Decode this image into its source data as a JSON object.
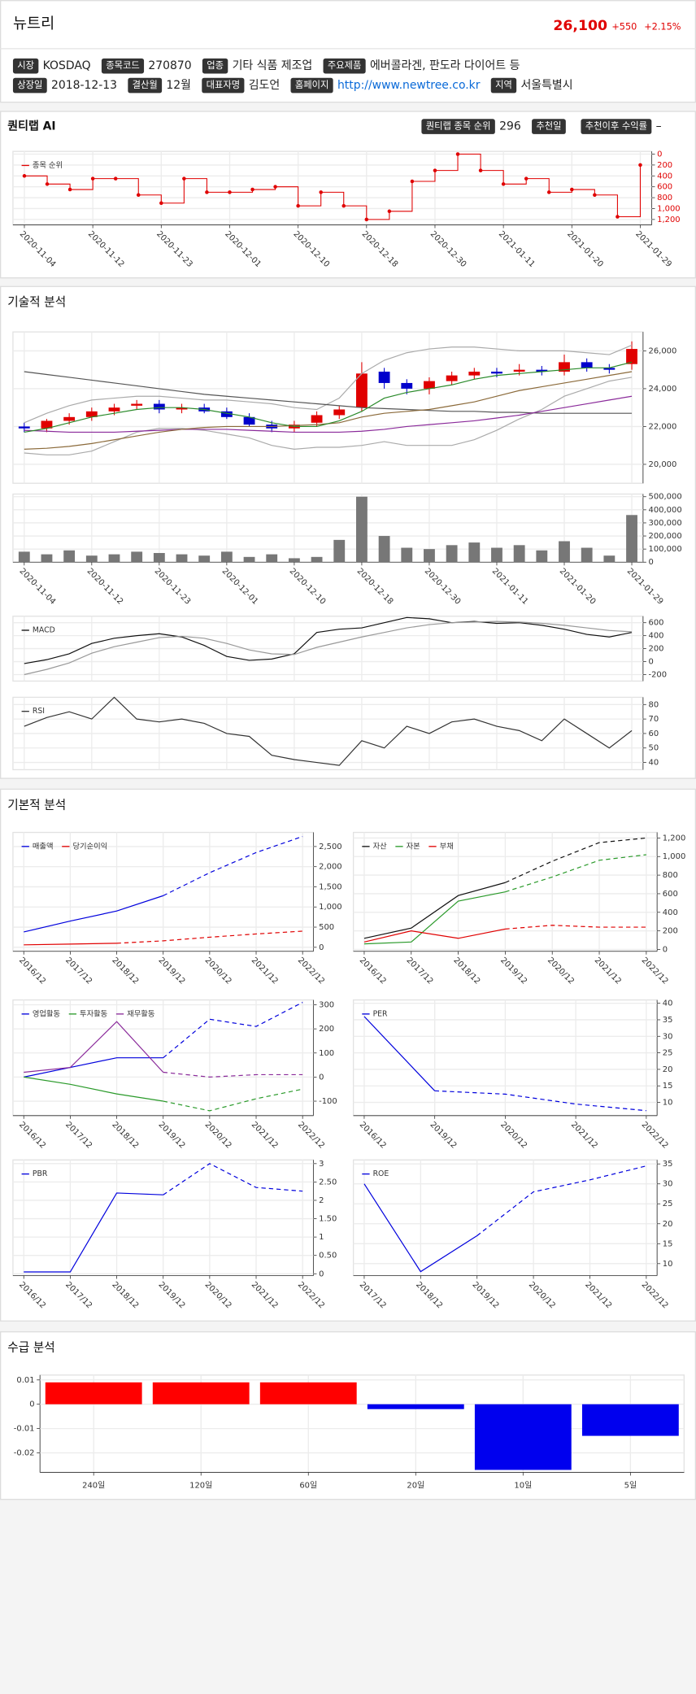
{
  "header": {
    "name": "뉴트리",
    "price": "26,100",
    "change": "+550",
    "change_pct": "+2.15%",
    "info": [
      [
        {
          "label": "시장",
          "value": "KOSDAQ"
        },
        {
          "label": "종목코드",
          "value": "270870"
        },
        {
          "label": "업종",
          "value": "기타 식품 제조업"
        },
        {
          "label": "주요제품",
          "value": "에버콜라겐, 판도라 다이어트 등"
        }
      ],
      [
        {
          "label": "상장일",
          "value": "2018-12-13"
        },
        {
          "label": "결산월",
          "value": "12월"
        },
        {
          "label": "대표자명",
          "value": "김도언"
        },
        {
          "label": "홈페이지",
          "value": "http://www.newtree.co.kr",
          "link": true
        },
        {
          "label": "지역",
          "value": "서울특별시"
        }
      ]
    ]
  },
  "sections": {
    "ai": "퀀티랩 AI",
    "tech": "기술적 분석",
    "fund": "기본적 분석",
    "supply": "수급 분석"
  },
  "ai_badges": [
    {
      "label": "퀀티랩 종목 순위",
      "value": 296
    },
    {
      "label": "추천일"
    },
    {
      "label": "추천이후 수익률",
      "value": "–"
    }
  ],
  "chart_data": [
    {
      "type": "line",
      "step": true,
      "markers": true,
      "y_reversed": true,
      "tick_color": "#e00000",
      "categories": [
        "2020-11-04",
        null,
        null,
        "2020-11-12",
        null,
        null,
        "2020-11-23",
        null,
        null,
        "2020-12-01",
        null,
        null,
        "2020-12-10",
        null,
        null,
        "2020-12-18",
        null,
        null,
        "2020-12-30",
        null,
        null,
        "2021-01-11",
        null,
        null,
        "2021-01-20",
        null,
        null,
        "2021-01-29"
      ],
      "series": [
        {
          "name": "종목 순위",
          "color": "#e00000",
          "values": [
            400,
            550,
            650,
            450,
            450,
            750,
            900,
            450,
            700,
            700,
            650,
            600,
            950,
            700,
            950,
            1200,
            1050,
            500,
            300,
            0,
            300,
            550,
            450,
            700,
            650,
            750,
            1150,
            200
          ]
        }
      ],
      "ylim": [
        -50,
        1300
      ],
      "yticks": [
        0,
        200,
        400,
        600,
        800,
        {
          "value": 1000,
          "label": "1,000"
        },
        {
          "value": 1200,
          "label": "1,200"
        }
      ]
    },
    {
      "type": "candlestick",
      "up_color": "#e00000",
      "down_color": "#0000cc",
      "open": [
        22000,
        21900,
        22300,
        22500,
        22800,
        23100,
        23200,
        22900,
        23000,
        22800,
        22500,
        22100,
        21900,
        22200,
        22600,
        23000,
        24900,
        24300,
        24000,
        24400,
        24700,
        24900,
        24900,
        25000,
        24900,
        25400,
        25100,
        25300
      ],
      "high": [
        22200,
        22400,
        22700,
        23000,
        23200,
        23400,
        23400,
        23200,
        23200,
        23000,
        22700,
        22300,
        22300,
        22800,
        23100,
        25400,
        25100,
        24500,
        24600,
        24900,
        25100,
        25100,
        25300,
        25200,
        25800,
        25600,
        25300,
        26500
      ],
      "low": [
        21700,
        21700,
        22100,
        22300,
        22600,
        22900,
        22700,
        22700,
        22700,
        22400,
        22000,
        21700,
        21700,
        22000,
        22400,
        22800,
        24000,
        23700,
        23700,
        24200,
        24500,
        24600,
        24700,
        24700,
        24700,
        24900,
        24800,
        25000
      ],
      "close": [
        21900,
        22300,
        22500,
        22800,
        23000,
        23200,
        22900,
        23000,
        22800,
        22500,
        22100,
        21900,
        22100,
        22600,
        22900,
        24800,
        24300,
        24000,
        24400,
        24700,
        24900,
        24800,
        25000,
        24900,
        25400,
        25100,
        25000,
        26100
      ],
      "series": [
        {
          "color": "#aaaaaa",
          "values": [
            22200,
            22700,
            23100,
            23400,
            23500,
            23600,
            23600,
            23500,
            23400,
            23400,
            23300,
            23200,
            23000,
            22900,
            23500,
            24800,
            25500,
            25900,
            26100,
            26200,
            26200,
            26100,
            26000,
            26000,
            26000,
            25900,
            25800,
            26300
          ]
        },
        {
          "color": "#aaaaaa",
          "values": [
            20600,
            20500,
            20500,
            20700,
            21200,
            21700,
            21900,
            21900,
            21800,
            21600,
            21400,
            21000,
            20800,
            20900,
            20900,
            21000,
            21200,
            21000,
            21000,
            21000,
            21300,
            21800,
            22400,
            22900,
            23600,
            24000,
            24400,
            24600
          ]
        },
        {
          "color": "#555555",
          "values": [
            24900,
            24750,
            24600,
            24450,
            24300,
            24150,
            24000,
            23850,
            23700,
            23600,
            23500,
            23400,
            23300,
            23200,
            23100,
            23000,
            22950,
            22900,
            22850,
            22800,
            22800,
            22750,
            22750,
            22700,
            22700,
            22700,
            22700,
            22700
          ]
        },
        {
          "color": "#8a2a9a",
          "values": [
            21800,
            21750,
            21700,
            21700,
            21700,
            21750,
            21800,
            21850,
            21850,
            21850,
            21800,
            21750,
            21700,
            21700,
            21700,
            21750,
            21850,
            22000,
            22100,
            22200,
            22300,
            22450,
            22600,
            22800,
            23000,
            23200,
            23400,
            23600
          ]
        },
        {
          "color": "#8b6a3a",
          "values": [
            20800,
            20850,
            20950,
            21100,
            21300,
            21500,
            21700,
            21850,
            21950,
            22000,
            22000,
            22000,
            22050,
            22100,
            22200,
            22500,
            22700,
            22800,
            22900,
            23100,
            23300,
            23600,
            23900,
            24100,
            24300,
            24500,
            24700,
            24900
          ]
        },
        {
          "color": "#2a8a2a",
          "values": [
            21700,
            21900,
            22200,
            22500,
            22700,
            22900,
            23000,
            23000,
            22900,
            22700,
            22500,
            22200,
            22000,
            22000,
            22300,
            22800,
            23500,
            23800,
            24000,
            24200,
            24500,
            24700,
            24800,
            24900,
            25000,
            25100,
            25100,
            25400
          ]
        }
      ],
      "ylim": [
        19000,
        27000
      ],
      "yticks": [
        {
          "value": 20000,
          "label": "20,000"
        },
        {
          "value": 22000,
          "label": "22,000"
        },
        {
          "value": 24000,
          "label": "24,000"
        },
        {
          "value": 26000,
          "label": "26,000"
        }
      ]
    },
    {
      "type": "bar",
      "color": "#777777",
      "categories": [
        "2020-11-04",
        null,
        null,
        "2020-11-12",
        null,
        null,
        "2020-11-23",
        null,
        null,
        "2020-12-01",
        null,
        null,
        "2020-12-10",
        null,
        null,
        "2020-12-18",
        null,
        null,
        "2020-12-30",
        null,
        null,
        "2021-01-11",
        null,
        null,
        "2021-01-20",
        null,
        null,
        "2021-01-29"
      ],
      "values": [
        80000,
        60000,
        90000,
        50000,
        60000,
        80000,
        70000,
        60000,
        50000,
        80000,
        40000,
        60000,
        30000,
        40000,
        170000,
        500000,
        200000,
        110000,
        100000,
        130000,
        150000,
        110000,
        130000,
        90000,
        160000,
        110000,
        50000,
        360000
      ],
      "ylim": [
        0,
        520000
      ],
      "yticks": [
        0,
        {
          "value": 100000,
          "label": "100,000"
        },
        {
          "value": 200000,
          "label": "200,000"
        },
        {
          "value": 300000,
          "label": "300,000"
        },
        {
          "value": 400000,
          "label": "400,000"
        },
        {
          "value": 500000,
          "label": "500,000"
        }
      ]
    },
    {
      "type": "line",
      "series": [
        {
          "name": "MACD",
          "color": "#111111",
          "values": [
            -30,
            30,
            120,
            280,
            360,
            400,
            430,
            380,
            250,
            80,
            20,
            40,
            120,
            450,
            500,
            520,
            600,
            680,
            660,
            600,
            620,
            590,
            600,
            560,
            500,
            420,
            380,
            450
          ]
        },
        {
          "color": "#999999",
          "values": [
            -200,
            -120,
            -20,
            130,
            230,
            300,
            370,
            390,
            360,
            280,
            180,
            120,
            110,
            220,
            300,
            380,
            450,
            520,
            570,
            600,
            610,
            620,
            610,
            590,
            560,
            520,
            480,
            460
          ]
        }
      ],
      "ylim": [
        -300,
        700
      ],
      "yticks": [
        -200,
        0,
        200,
        400,
        600
      ]
    },
    {
      "type": "line",
      "series": [
        {
          "name": "RSI",
          "color": "#333333",
          "values": [
            65,
            71,
            75,
            70,
            85,
            70,
            68,
            70,
            67,
            60,
            58,
            45,
            42,
            40,
            38,
            55,
            50,
            65,
            60,
            68,
            70,
            65,
            62,
            55,
            70,
            60,
            50,
            62
          ]
        }
      ],
      "ylim": [
        35,
        85
      ],
      "yticks": [
        40,
        50,
        60,
        70,
        80
      ]
    },
    {
      "type": "line",
      "categories": [
        "2016/12",
        "2017/12",
        "2018/12",
        "2019/12",
        "2020/12",
        "2021/12",
        "2022/12"
      ],
      "series": [
        {
          "name": "매출액",
          "color": "#0000dd",
          "dash_from": 3,
          "values": [
            380,
            650,
            900,
            1280,
            1850,
            2350,
            2750
          ]
        },
        {
          "name": "당기순이익",
          "color": "#e00000",
          "dash_from": 2,
          "values": [
            60,
            80,
            100,
            160,
            250,
            330,
            400
          ]
        }
      ],
      "ylim": [
        -100,
        2850
      ],
      "yticks": [
        0,
        500,
        {
          "value": 1000,
          "label": "1,000"
        },
        {
          "value": 1500,
          "label": "1,500"
        },
        {
          "value": 2000,
          "label": "2,000"
        },
        {
          "value": 2500,
          "label": "2,500"
        }
      ]
    },
    {
      "type": "line",
      "categories": [
        "2016/12",
        "2017/12",
        "2018/12",
        "2019/12",
        "2020/12",
        "2021/12",
        "2022/12"
      ],
      "series": [
        {
          "name": "자산",
          "color": "#111111",
          "dash_from": 3,
          "values": [
            120,
            230,
            580,
            720,
            950,
            1150,
            1200
          ]
        },
        {
          "name": "자본",
          "color": "#2a9a2a",
          "dash_from": 3,
          "values": [
            60,
            80,
            520,
            620,
            780,
            960,
            1020
          ]
        },
        {
          "name": "부채",
          "color": "#e00000",
          "dash_from": 3,
          "values": [
            80,
            200,
            120,
            220,
            260,
            240,
            240
          ]
        }
      ],
      "ylim": [
        -20,
        1260
      ],
      "yticks": [
        0,
        200,
        400,
        600,
        800,
        {
          "value": 1000,
          "label": "1,000"
        },
        {
          "value": 1200,
          "label": "1,200"
        }
      ]
    },
    {
      "type": "line",
      "categories": [
        "2016/12",
        "2017/12",
        "2018/12",
        "2019/12",
        "2020/12",
        "2021/12",
        "2022/12"
      ],
      "series": [
        {
          "name": "영업활동",
          "color": "#0000dd",
          "dash_from": 3,
          "values": [
            0,
            40,
            80,
            80,
            240,
            210,
            310
          ]
        },
        {
          "name": "투자활동",
          "color": "#2a9a2a",
          "dash_from": 3,
          "values": [
            0,
            -30,
            -70,
            -100,
            -140,
            -90,
            -50
          ]
        },
        {
          "name": "재무활동",
          "color": "#8a2a9a",
          "dash_from": 3,
          "values": [
            20,
            40,
            230,
            20,
            0,
            10,
            10
          ]
        }
      ],
      "ylim": [
        -160,
        320
      ],
      "yticks": [
        -100,
        0,
        100,
        200,
        300
      ]
    },
    {
      "type": "line",
      "categories": [
        "2016/12",
        "2019/12",
        "2020/12",
        "2021/12",
        "2022/12"
      ],
      "series": [
        {
          "name": "PER",
          "color": "#0000dd",
          "dash_from": 1,
          "values": [
            36,
            13.5,
            12.5,
            9.5,
            7.5
          ]
        }
      ],
      "ylim": [
        6,
        41
      ],
      "yticks": [
        10,
        15,
        20,
        25,
        30,
        35,
        40
      ]
    },
    {
      "type": "line",
      "categories": [
        "2016/12",
        "2017/12",
        "2018/12",
        "2019/12",
        "2020/12",
        "2021/12",
        "2022/12"
      ],
      "series": [
        {
          "name": "PBR",
          "color": "#0000dd",
          "dash_from": 3,
          "values": [
            0.05,
            0.05,
            2.2,
            2.15,
            3,
            2.35,
            2.25
          ]
        }
      ],
      "ylim": [
        -0.05,
        3.1
      ],
      "yticks": [
        0,
        {
          "value": 0.5,
          "label": "0.50"
        },
        1,
        {
          "value": 1.5,
          "label": "1.50"
        },
        2,
        {
          "value": 2.5,
          "label": "2.50"
        },
        3
      ]
    },
    {
      "type": "line",
      "categories": [
        "2017/12",
        "2018/12",
        "2019/12",
        "2020/12",
        "2021/12",
        "2022/12"
      ],
      "series": [
        {
          "name": "ROE",
          "color": "#0000dd",
          "dash_from": 2,
          "values": [
            30,
            8,
            17,
            28,
            31,
            34.5
          ]
        }
      ],
      "ylim": [
        7,
        36
      ],
      "yticks": [
        10,
        15,
        20,
        25,
        30,
        35
      ]
    },
    {
      "type": "bar",
      "positive_color": "#ff0000",
      "negative_color": "#0000ee",
      "categories": [
        "240일",
        "120일",
        "60일",
        "20일",
        "10일",
        "5일"
      ],
      "values": [
        0.009,
        0.009,
        0.009,
        -0.002,
        -0.027,
        -0.013
      ],
      "ylim": [
        -0.028,
        0.012
      ],
      "yticks": [
        0.01,
        0,
        -0.01,
        -0.02
      ]
    }
  ]
}
